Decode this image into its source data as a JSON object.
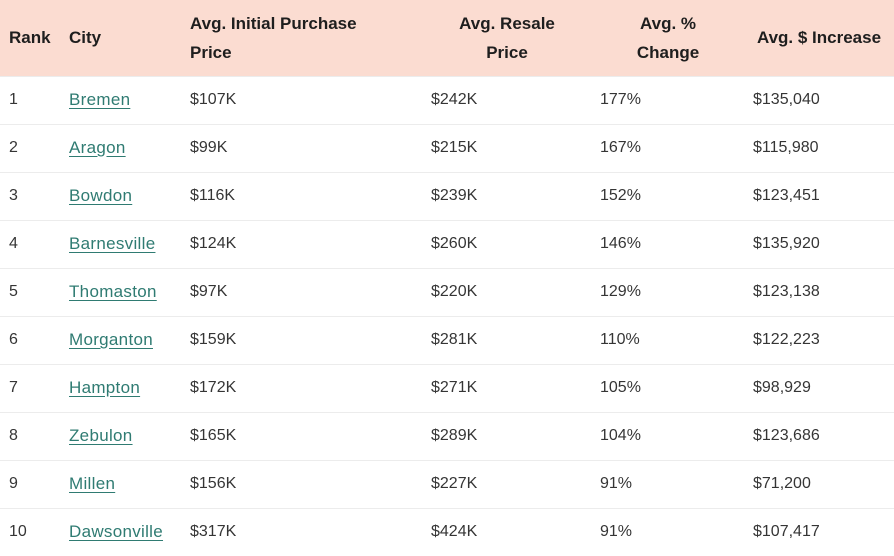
{
  "chart_data": {
    "type": "table",
    "title": "",
    "columns": [
      "Rank",
      "City",
      "Avg. Initial Purchase Price",
      "Avg. Resale Price",
      "Avg. % Change",
      "Avg. $ Increase"
    ],
    "rows": [
      {
        "rank": "1",
        "city": "Bremen",
        "initial": "$107K",
        "resale": "$242K",
        "pct": "177%",
        "increase": "$135,040"
      },
      {
        "rank": "2",
        "city": "Aragon",
        "initial": "$99K",
        "resale": "$215K",
        "pct": "167%",
        "increase": "$115,980"
      },
      {
        "rank": "3",
        "city": "Bowdon",
        "initial": "$116K",
        "resale": "$239K",
        "pct": "152%",
        "increase": "$123,451"
      },
      {
        "rank": "4",
        "city": "Barnesville",
        "initial": "$124K",
        "resale": "$260K",
        "pct": "146%",
        "increase": "$135,920"
      },
      {
        "rank": "5",
        "city": "Thomaston",
        "initial": "$97K",
        "resale": "$220K",
        "pct": "129%",
        "increase": "$123,138"
      },
      {
        "rank": "6",
        "city": "Morganton",
        "initial": "$159K",
        "resale": "$281K",
        "pct": "110%",
        "increase": "$122,223"
      },
      {
        "rank": "7",
        "city": "Hampton",
        "initial": "$172K",
        "resale": "$271K",
        "pct": "105%",
        "increase": "$98,929"
      },
      {
        "rank": "8",
        "city": "Zebulon",
        "initial": "$165K",
        "resale": "$289K",
        "pct": "104%",
        "increase": "$123,686"
      },
      {
        "rank": "9",
        "city": "Millen",
        "initial": "$156K",
        "resale": "$227K",
        "pct": "91%",
        "increase": "$71,200"
      },
      {
        "rank": "10",
        "city": "Dawsonville",
        "initial": "$317K",
        "resale": "$424K",
        "pct": "91%",
        "increase": "$107,417"
      }
    ]
  },
  "colors": {
    "header_background": "#fbdcd1",
    "header_text": "#1e1e1e",
    "body_text": "#353535",
    "city_link": "#2f7b72",
    "row_divider": "#ececec",
    "row_background": "#ffffff"
  }
}
